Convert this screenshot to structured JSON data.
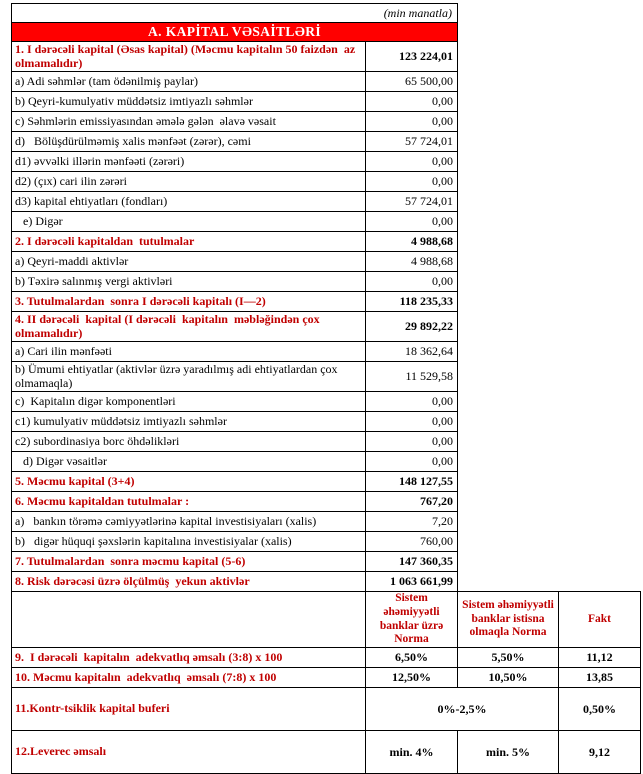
{
  "unit_note": "(min manatla)",
  "title": "A. KAPİTAL VƏSAİTLƏRİ",
  "colors": {
    "title_bg": "#ff0000",
    "title_text": "#ffffff",
    "heading_text": "#c00000",
    "border": "#000000"
  },
  "main_rows": [
    {
      "label": "1. I dərəcəli kapital (Əsas kapital) (Məcmu kapitalın 50 faizdən  az olmamalıdır)",
      "value": "123 224,01",
      "red": true,
      "tall": true
    },
    {
      "label": "a) Adi səhmlər (tam ödənilmiş paylar)",
      "value": "65 500,00"
    },
    {
      "label": "b) Qeyri-kumulyativ müddətsiz imtiyazlı səhmlər",
      "value": "0,00"
    },
    {
      "label": "c) Səhmlərin emissiyasından əmələ gələn  əlavə vəsait",
      "value": "0,00"
    },
    {
      "label": "d)   Bölüşdürülməmiş xalis mənfəət (zərər), cəmi",
      "value": "57 724,01"
    },
    {
      "label": "d1) əvvəlki illərin mənfəəti (zərəri)",
      "value": "0,00"
    },
    {
      "label": "d2) (çıx) cari ilin zərəri",
      "value": "0,00"
    },
    {
      "label": "d3) kapital ehtiyatları (fondları)",
      "value": "57 724,01"
    },
    {
      "label": "e) Digər",
      "value": "0,00",
      "indent": true
    },
    {
      "label": "2. I dərəcəli kapitaldan  tutulmalar",
      "value": "4 988,68",
      "red": true
    },
    {
      "label": "a) Qeyri-maddi aktivlər",
      "value": "4 988,68"
    },
    {
      "label": "b) Təxirə salınmış vergi aktivləri",
      "value": "0,00"
    },
    {
      "label": "3. Tutulmalardan  sonra I dərəcəli kapitalı (I—2)",
      "value": "118 235,33",
      "red": true
    },
    {
      "label": "4. II dərəcəli  kapital (I dərəcəli  kapitalın  məbləğindən çox olmamalıdır)",
      "value": "29 892,22",
      "red": true,
      "tall": true
    },
    {
      "label": "a) Cari ilin mənfəəti",
      "value": "18 362,64"
    },
    {
      "label": "b) Ümumi ehtiyatlar (aktivlər üzrə yaradılmış adi ehtiyatlardan çox olmamaqla)",
      "value": "11 529,58",
      "tall": true
    },
    {
      "label": "c)  Kapitalın digər komponentləri",
      "value": "0,00"
    },
    {
      "label": "c1) kumulyativ müddətsiz imtiyazlı səhmlər",
      "value": "0,00"
    },
    {
      "label": "c2) subordinasiya borc öhdəlikləri",
      "value": "0,00"
    },
    {
      "label": "d) Digər vəsaitlər",
      "value": "0,00",
      "indent": true
    },
    {
      "label": "5. Məcmu kapital (3+4)",
      "value": "148 127,55",
      "red": true
    },
    {
      "label": "6. Məcmu kapitaldan tutulmalar :",
      "value": "767,20",
      "red": true
    },
    {
      "label": "a)   bankın törəmə cəmiyyətlərinə kapital investisiyaları (xalis)",
      "value": "7,20"
    },
    {
      "label": "b)   digər hüquqi şəxslərin kapitalına investisiyalar (xalis)",
      "value": "760,00"
    },
    {
      "label": "7. Tutulmalardan  sonra məcmu kapital (5-6)",
      "value": "147 360,35",
      "red": true
    },
    {
      "label": "8. Risk dərəcəsi üzrə ölçülmüş  yekun aktivlər",
      "value": "1 063 661,99",
      "red": true
    }
  ],
  "adequacy": {
    "headers": [
      "Sistem əhəmiyyətli banklar üzrə Norma",
      "Sistem əhəmiyyətli banklar istisna olmaqla Norma",
      "Fakt"
    ],
    "rows": [
      {
        "label": "9.  I dərəcəli  kapitalın  adekvatlıq əmsalı (3:8) x 100",
        "norma_sys": "6,50%",
        "norma_excl": "5,50%",
        "fakt": "11,12"
      },
      {
        "label": "10. Məcmu kapitalın  adekvatlıq  əmsalı (7:8) x 100",
        "norma_sys": "12,50%",
        "norma_excl": "10,50%",
        "fakt": "13,85"
      },
      {
        "label": "11.Kontr-tsiklik kapital buferi",
        "norma_merged": "0%-2,5%",
        "fakt": "0,50%",
        "tall": true
      },
      {
        "label": "12.Leverec əmsalı",
        "norma_sys": "min. 4%",
        "norma_excl": "min. 5%",
        "fakt": "9,12",
        "tall": true
      }
    ]
  }
}
